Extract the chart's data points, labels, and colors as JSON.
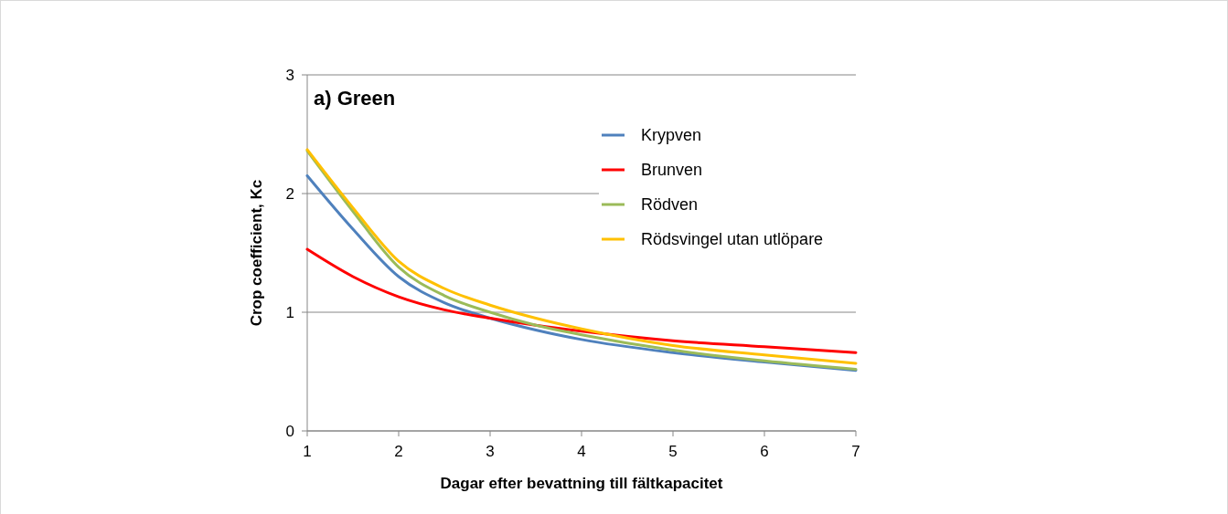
{
  "chart_data": {
    "type": "line",
    "title": "a) Green",
    "xlabel": "Dagar efter bevattning till fältkapacitet",
    "ylabel": "Crop coefficient, Kc",
    "x": [
      1,
      1.5,
      2,
      2.5,
      3,
      3.5,
      4,
      5,
      6,
      7
    ],
    "series": [
      {
        "name": "Krypven",
        "color": "#4f81bd",
        "values": [
          2.15,
          1.7,
          1.3,
          1.08,
          0.95,
          0.85,
          0.77,
          0.66,
          0.58,
          0.51
        ]
      },
      {
        "name": "Brunven",
        "color": "#ff0000",
        "values": [
          1.53,
          1.3,
          1.13,
          1.02,
          0.95,
          0.89,
          0.84,
          0.76,
          0.71,
          0.66
        ]
      },
      {
        "name": "Rödven",
        "color": "#9bbb59",
        "values": [
          2.36,
          1.85,
          1.38,
          1.14,
          1.0,
          0.89,
          0.81,
          0.68,
          0.59,
          0.52
        ]
      },
      {
        "name": "Rödsvingel utan utlöpare",
        "color": "#ffc000",
        "values": [
          2.37,
          1.88,
          1.43,
          1.2,
          1.06,
          0.95,
          0.86,
          0.72,
          0.64,
          0.57
        ]
      }
    ],
    "xlim": [
      1,
      7
    ],
    "xticks": [
      1,
      2,
      3,
      4,
      5,
      6,
      7
    ],
    "ylim": [
      0,
      3
    ],
    "yticks": [
      0,
      1,
      2,
      3
    ],
    "grid": "y",
    "legend": "top right",
    "marker": "none",
    "line_style": "solid"
  }
}
